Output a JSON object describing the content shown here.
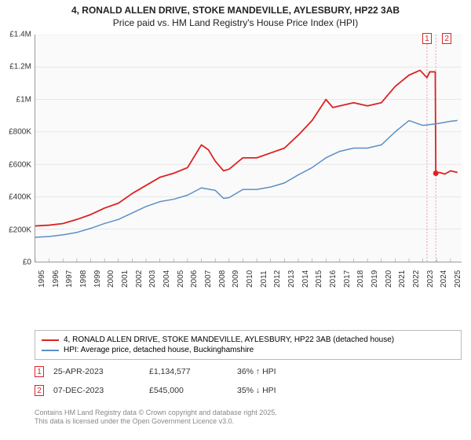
{
  "title": {
    "line1": "4, RONALD ALLEN DRIVE, STOKE MANDEVILLE, AYLESBURY, HP22 3AB",
    "line2": "Price paid vs. HM Land Registry's House Price Index (HPI)",
    "fontsize": 12,
    "color": "#222222"
  },
  "chart": {
    "type": "line",
    "background_color": "#fafafa",
    "grid_color": "#dddddd",
    "axis_color": "#999999",
    "xlim": [
      1995,
      2025.8
    ],
    "ylim": [
      0,
      1400000
    ],
    "yticks": [
      {
        "v": 0,
        "label": "£0"
      },
      {
        "v": 200000,
        "label": "£200K"
      },
      {
        "v": 400000,
        "label": "£400K"
      },
      {
        "v": 600000,
        "label": "£600K"
      },
      {
        "v": 800000,
        "label": "£800K"
      },
      {
        "v": 1000000,
        "label": "£1M"
      },
      {
        "v": 1200000,
        "label": "£1.2M"
      },
      {
        "v": 1400000,
        "label": "£1.4M"
      }
    ],
    "xticks": [
      1995,
      1996,
      1997,
      1998,
      1999,
      2000,
      2001,
      2002,
      2003,
      2004,
      2005,
      2006,
      2007,
      2008,
      2009,
      2010,
      2011,
      2012,
      2013,
      2014,
      2015,
      2016,
      2017,
      2018,
      2019,
      2020,
      2021,
      2022,
      2023,
      2024,
      2025
    ],
    "series": [
      {
        "id": "price_paid",
        "label": "4, RONALD ALLEN DRIVE, STOKE MANDEVILLE, AYLESBURY, HP22 3AB (detached house)",
        "color": "#dd2222",
        "line_width": 1.8,
        "data": [
          [
            1995,
            220000
          ],
          [
            1996,
            225000
          ],
          [
            1997,
            235000
          ],
          [
            1998,
            260000
          ],
          [
            1999,
            290000
          ],
          [
            2000,
            330000
          ],
          [
            2001,
            360000
          ],
          [
            2002,
            420000
          ],
          [
            2003,
            470000
          ],
          [
            2004,
            520000
          ],
          [
            2005,
            545000
          ],
          [
            2006,
            580000
          ],
          [
            2007,
            720000
          ],
          [
            2007.5,
            690000
          ],
          [
            2008,
            620000
          ],
          [
            2008.6,
            560000
          ],
          [
            2009,
            570000
          ],
          [
            2010,
            640000
          ],
          [
            2011,
            640000
          ],
          [
            2012,
            670000
          ],
          [
            2013,
            700000
          ],
          [
            2014,
            780000
          ],
          [
            2015,
            870000
          ],
          [
            2016,
            1000000
          ],
          [
            2016.5,
            950000
          ],
          [
            2017,
            960000
          ],
          [
            2018,
            980000
          ],
          [
            2019,
            960000
          ],
          [
            2020,
            980000
          ],
          [
            2021,
            1080000
          ],
          [
            2022,
            1150000
          ],
          [
            2022.8,
            1180000
          ],
          [
            2023.3,
            1134577
          ],
          [
            2023.5,
            1170000
          ],
          [
            2023.9,
            1170000
          ],
          [
            2023.94,
            545000
          ],
          [
            2024.2,
            550000
          ],
          [
            2024.6,
            540000
          ],
          [
            2025,
            560000
          ],
          [
            2025.5,
            550000
          ]
        ]
      },
      {
        "id": "hpi",
        "label": "HPI: Average price, detached house, Buckinghamshire",
        "color": "#5b8fc7",
        "line_width": 1.5,
        "data": [
          [
            1995,
            150000
          ],
          [
            1996,
            155000
          ],
          [
            1997,
            165000
          ],
          [
            1998,
            180000
          ],
          [
            1999,
            205000
          ],
          [
            2000,
            235000
          ],
          [
            2001,
            260000
          ],
          [
            2002,
            300000
          ],
          [
            2003,
            340000
          ],
          [
            2004,
            370000
          ],
          [
            2005,
            385000
          ],
          [
            2006,
            410000
          ],
          [
            2007,
            455000
          ],
          [
            2008,
            440000
          ],
          [
            2008.6,
            390000
          ],
          [
            2009,
            395000
          ],
          [
            2010,
            445000
          ],
          [
            2011,
            445000
          ],
          [
            2012,
            460000
          ],
          [
            2013,
            485000
          ],
          [
            2014,
            535000
          ],
          [
            2015,
            580000
          ],
          [
            2016,
            640000
          ],
          [
            2017,
            680000
          ],
          [
            2018,
            700000
          ],
          [
            2019,
            700000
          ],
          [
            2020,
            720000
          ],
          [
            2021,
            800000
          ],
          [
            2022,
            870000
          ],
          [
            2023,
            840000
          ],
          [
            2024,
            850000
          ],
          [
            2025,
            865000
          ],
          [
            2025.5,
            870000
          ]
        ]
      }
    ],
    "event_markers": [
      {
        "num": "1",
        "x": 2023.3,
        "vline_color": "#e8a0a0"
      },
      {
        "num": "2",
        "x": 2023.94,
        "vline_color": "#e8a0a0",
        "dot_y": 545000
      }
    ],
    "label_fontsize": 10
  },
  "legend": {
    "items": [
      {
        "color": "#dd2222",
        "label": "4, RONALD ALLEN DRIVE, STOKE MANDEVILLE, AYLESBURY, HP22 3AB (detached house)"
      },
      {
        "color": "#5b8fc7",
        "label": "HPI: Average price, detached house, Buckinghamshire"
      }
    ]
  },
  "events_table": [
    {
      "num": "1",
      "date": "25-APR-2023",
      "price": "£1,134,577",
      "delta": "36% ↑ HPI"
    },
    {
      "num": "2",
      "date": "07-DEC-2023",
      "price": "£545,000",
      "delta": "35% ↓ HPI"
    }
  ],
  "credits": {
    "line1": "Contains HM Land Registry data © Crown copyright and database right 2025.",
    "line2": "This data is licensed under the Open Government Licence v3.0.",
    "color": "#888888",
    "fontsize": 9
  }
}
